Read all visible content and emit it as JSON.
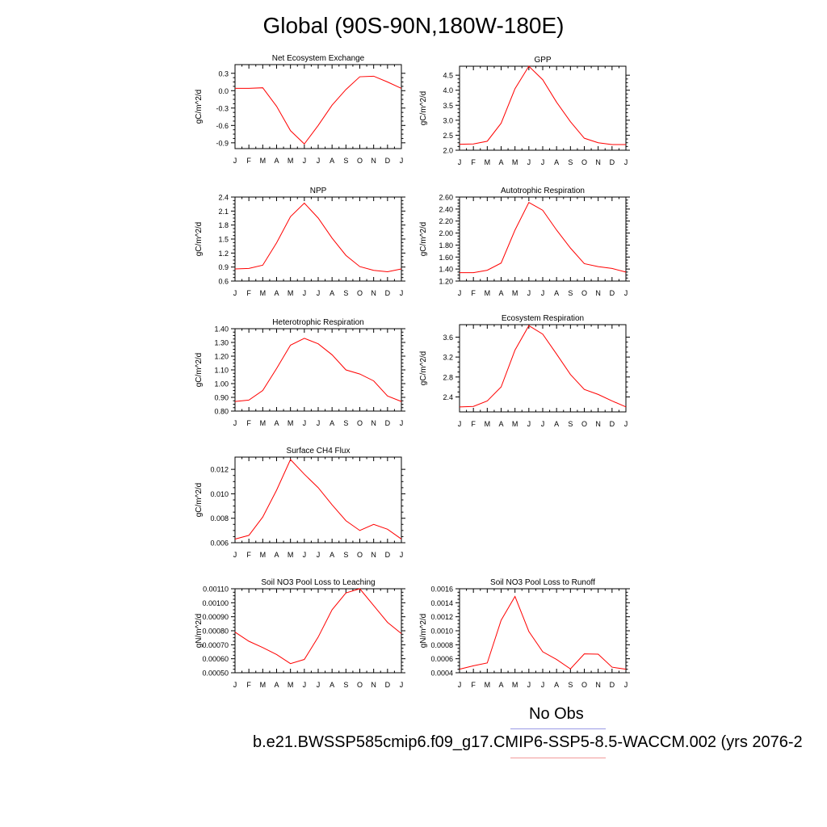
{
  "figure": {
    "title": "Global (90S-90N,180W-180E)",
    "obs_label": "No Obs",
    "case_label": "b.e21.BWSSP585cmip6.f09_g17.CMIP6-SSP5-8.5-WACCM.002 (yrs 2076-2",
    "colors": {
      "model_line": "#ff0000",
      "obs_line": "#0000ff",
      "legend_obs": "#9a9ae6",
      "legend_model": "#f29a9a"
    }
  },
  "months": [
    "J",
    "F",
    "M",
    "A",
    "M",
    "J",
    "J",
    "A",
    "S",
    "O",
    "N",
    "D",
    "J"
  ],
  "chart_data": [
    {
      "type": "line",
      "title": "Net Ecosystem Exchange",
      "ylabel": "gC/m^2/d",
      "ylim": [
        -1.0,
        0.45
      ],
      "yticks": [
        "0.3",
        "0.0",
        "-0.3",
        "-0.6",
        "-0.9"
      ],
      "ytick_values": [
        0.3,
        0.0,
        -0.3,
        -0.6,
        -0.9
      ],
      "series": [
        {
          "values": [
            0.04,
            0.04,
            0.05,
            -0.27,
            -0.69,
            -0.92,
            -0.6,
            -0.25,
            0.02,
            0.24,
            0.25,
            0.15,
            0.04
          ]
        }
      ]
    },
    {
      "type": "line",
      "title": "GPP",
      "ylabel": "gC/m^2/d",
      "ylim": [
        2.0,
        4.8
      ],
      "yticks": [
        "4.5",
        "4.0",
        "3.5",
        "3.0",
        "2.5",
        "2.0"
      ],
      "ytick_values": [
        4.5,
        4.0,
        3.5,
        3.0,
        2.5,
        2.0
      ],
      "series": [
        {
          "values": [
            2.2,
            2.21,
            2.3,
            2.9,
            4.05,
            4.8,
            4.35,
            3.6,
            2.95,
            2.4,
            2.25,
            2.19,
            2.19
          ]
        }
      ]
    },
    {
      "type": "line",
      "title": "NPP",
      "ylabel": "gC/m^2/d",
      "ylim": [
        0.6,
        2.4
      ],
      "yticks": [
        "2.4",
        "2.1",
        "1.8",
        "1.5",
        "1.2",
        "0.9",
        "0.6"
      ],
      "ytick_values": [
        2.4,
        2.1,
        1.8,
        1.5,
        1.2,
        0.9,
        0.6
      ],
      "series": [
        {
          "values": [
            0.86,
            0.87,
            0.94,
            1.42,
            1.98,
            2.27,
            1.95,
            1.52,
            1.15,
            0.91,
            0.83,
            0.8,
            0.86
          ]
        }
      ]
    },
    {
      "type": "line",
      "title": "Autotrophic Respiration",
      "ylabel": "gC/m^2/d",
      "ylim": [
        1.2,
        2.6
      ],
      "yticks": [
        "2.60",
        "2.40",
        "2.20",
        "2.00",
        "1.80",
        "1.60",
        "1.40",
        "1.20"
      ],
      "ytick_values": [
        2.6,
        2.4,
        2.2,
        2.0,
        1.8,
        1.6,
        1.4,
        1.2
      ],
      "series": [
        {
          "values": [
            1.34,
            1.34,
            1.38,
            1.5,
            2.05,
            2.51,
            2.38,
            2.05,
            1.75,
            1.49,
            1.44,
            1.41,
            1.35
          ]
        }
      ]
    },
    {
      "type": "line",
      "title": "Heterotrophic Respiration",
      "ylabel": "gC/m^2/d",
      "ylim": [
        0.8,
        1.4
      ],
      "yticks": [
        "1.40",
        "1.30",
        "1.20",
        "1.10",
        "1.00",
        "0.90",
        "0.80"
      ],
      "ytick_values": [
        1.4,
        1.3,
        1.2,
        1.1,
        1.0,
        0.9,
        0.8
      ],
      "series": [
        {
          "values": [
            0.87,
            0.88,
            0.95,
            1.11,
            1.28,
            1.33,
            1.29,
            1.21,
            1.1,
            1.07,
            1.02,
            0.91,
            0.87
          ]
        }
      ]
    },
    {
      "type": "line",
      "title": "Ecosystem Respiration",
      "ylabel": "gC/m^2/d",
      "ylim": [
        2.1,
        3.85
      ],
      "yticks": [
        "3.6",
        "3.2",
        "2.8",
        "2.4"
      ],
      "ytick_values": [
        3.6,
        3.2,
        2.8,
        2.4
      ],
      "series": [
        {
          "values": [
            2.2,
            2.21,
            2.32,
            2.6,
            3.34,
            3.83,
            3.66,
            3.26,
            2.85,
            2.55,
            2.45,
            2.32,
            2.2
          ]
        }
      ]
    },
    {
      "type": "line",
      "title": "Surface CH4 Flux",
      "ylabel": "gC/m^2/d",
      "ylim": [
        0.006,
        0.013
      ],
      "yticks": [
        "0.012",
        "0.010",
        "0.008",
        "0.006"
      ],
      "ytick_values": [
        0.012,
        0.01,
        0.008,
        0.006
      ],
      "series": [
        {
          "values": [
            0.0063,
            0.0066,
            0.0081,
            0.0103,
            0.0128,
            0.0116,
            0.0105,
            0.0091,
            0.0078,
            0.007,
            0.0075,
            0.0071,
            0.0063
          ]
        }
      ]
    },
    {
      "type": "line",
      "title": "Soil NO3 Pool Loss to Leaching",
      "ylabel": "gN/m^2/d",
      "ylim": [
        0.0005,
        0.0011
      ],
      "yticks": [
        "0.00110",
        "0.00100",
        "0.00090",
        "0.00080",
        "0.00070",
        "0.00060",
        "0.00050"
      ],
      "ytick_values": [
        0.0011,
        0.001,
        0.0009,
        0.0008,
        0.0007,
        0.0006,
        0.0005
      ],
      "series": [
        {
          "values": [
            0.00079,
            0.000725,
            0.00068,
            0.00063,
            0.000565,
            0.000595,
            0.000755,
            0.00095,
            0.00107,
            0.0011,
            0.00098,
            0.00086,
            0.00078
          ]
        }
      ]
    },
    {
      "type": "line",
      "title": "Soil NO3 Pool Loss to Runoff",
      "ylabel": "gN/m^2/d",
      "ylim": [
        0.0004,
        0.0016
      ],
      "yticks": [
        "0.0016",
        "0.0014",
        "0.0012",
        "0.0010",
        "0.0008",
        "0.0006",
        "0.0004"
      ],
      "ytick_values": [
        0.0016,
        0.0014,
        0.0012,
        0.001,
        0.0008,
        0.0006,
        0.0004
      ],
      "series": [
        {
          "values": [
            0.00045,
            0.0005,
            0.00054,
            0.00115,
            0.00149,
            0.00099,
            0.0007,
            0.00059,
            0.000455,
            0.00067,
            0.000665,
            0.00048,
            0.00045
          ]
        }
      ]
    }
  ]
}
